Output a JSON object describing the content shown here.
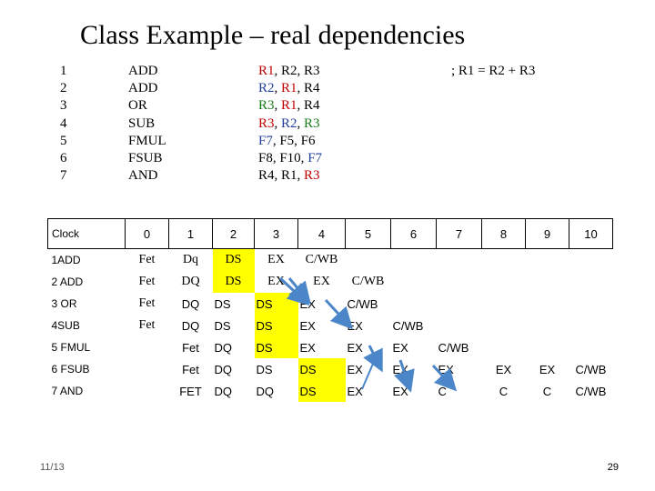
{
  "title": "Class Example – real dependencies",
  "code": {
    "line_numbers": [
      "1",
      "2",
      "3",
      "4",
      "5",
      "6",
      "7"
    ],
    "ops": [
      "ADD",
      "ADD",
      "OR",
      "SUB",
      "FMUL",
      "FSUB",
      "AND"
    ],
    "args": [
      [
        {
          "t": "R1",
          "c": "red"
        },
        {
          "t": ", R2, R3",
          "c": ""
        }
      ],
      [
        {
          "t": "R2",
          "c": "blue"
        },
        {
          "t": ", ",
          "c": ""
        },
        {
          "t": "R1",
          "c": "red"
        },
        {
          "t": ", R4",
          "c": ""
        }
      ],
      [
        {
          "t": "R3",
          "c": "green"
        },
        {
          "t": ", ",
          "c": ""
        },
        {
          "t": "R1",
          "c": "red"
        },
        {
          "t": ", R4",
          "c": ""
        }
      ],
      [
        {
          "t": "R3",
          "c": "red"
        },
        {
          "t": ", ",
          "c": ""
        },
        {
          "t": "R2",
          "c": "blue"
        },
        {
          "t": ", ",
          "c": ""
        },
        {
          "t": "R3",
          "c": "green"
        }
      ],
      [
        {
          "t": "F7",
          "c": "blue"
        },
        {
          "t": ", F5, F6",
          "c": ""
        }
      ],
      [
        {
          "t": "F8, F10, ",
          "c": ""
        },
        {
          "t": "F7",
          "c": "blue"
        }
      ],
      [
        {
          "t": "R4, R1, ",
          "c": ""
        },
        {
          "t": "R3",
          "c": "red"
        }
      ]
    ],
    "comment": "; R1 = R2 + R3"
  },
  "table": {
    "header_label": "Clock",
    "clocks": [
      "0",
      "1",
      "2",
      "3",
      "4",
      "5",
      "6",
      "7",
      "8",
      "9",
      "10"
    ],
    "rows": [
      {
        "label": "1ADD",
        "cells": [
          {
            "t": "Fet",
            "f": "serif"
          },
          {
            "t": "Dq",
            "f": "serif"
          },
          {
            "t": "DS",
            "f": "serif",
            "hl": true
          },
          {
            "t": "EX",
            "f": "serif"
          },
          {
            "t": "C/WB",
            "f": "serif"
          },
          {
            "t": ""
          },
          {
            "t": ""
          },
          {
            "t": ""
          },
          {
            "t": ""
          },
          {
            "t": ""
          },
          {
            "t": ""
          }
        ]
      },
      {
        "label": "2 ADD",
        "cells": [
          {
            "t": "Fet",
            "f": "serif"
          },
          {
            "t": "DQ",
            "f": "serif"
          },
          {
            "t": "DS",
            "f": "serif",
            "hl": true
          },
          {
            "t": "EX",
            "f": "serif"
          },
          {
            "t": "EX",
            "f": "serif"
          },
          {
            "t": "C/WB",
            "f": "serif"
          },
          {
            "t": ""
          },
          {
            "t": ""
          },
          {
            "t": ""
          },
          {
            "t": ""
          },
          {
            "t": ""
          }
        ]
      },
      {
        "label": "3 OR",
        "cells": [
          {
            "t": "Fet",
            "f": "serif"
          },
          {
            "t": "DQ"
          },
          {
            "t": "DS"
          },
          {
            "t": "DS",
            "hl": true
          },
          {
            "t": "EX"
          },
          {
            "t": "C/WB"
          },
          {
            "t": ""
          },
          {
            "t": ""
          },
          {
            "t": ""
          },
          {
            "t": ""
          },
          {
            "t": ""
          }
        ]
      },
      {
        "label": "4SUB",
        "cells": [
          {
            "t": "Fet",
            "f": "serif"
          },
          {
            "t": "DQ"
          },
          {
            "t": "DS"
          },
          {
            "t": "DS",
            "hl": true
          },
          {
            "t": "EX"
          },
          {
            "t": "EX"
          },
          {
            "t": "C/WB"
          },
          {
            "t": ""
          },
          {
            "t": ""
          },
          {
            "t": ""
          },
          {
            "t": ""
          }
        ]
      },
      {
        "label": "5 FMUL",
        "cells": [
          {
            "t": ""
          },
          {
            "t": "Fet"
          },
          {
            "t": "DQ"
          },
          {
            "t": "DS",
            "hl": true
          },
          {
            "t": "EX"
          },
          {
            "t": "EX"
          },
          {
            "t": "EX"
          },
          {
            "t": "C/WB"
          },
          {
            "t": ""
          },
          {
            "t": ""
          },
          {
            "t": ""
          }
        ]
      },
      {
        "label": "6 FSUB",
        "cells": [
          {
            "t": ""
          },
          {
            "t": "Fet"
          },
          {
            "t": "DQ"
          },
          {
            "t": "DS"
          },
          {
            "t": "DS",
            "hl": true
          },
          {
            "t": "EX"
          },
          {
            "t": "EX"
          },
          {
            "t": "EX"
          },
          {
            "t": "EX"
          },
          {
            "t": "EX"
          },
          {
            "t": "C/WB"
          }
        ]
      },
      {
        "label": "7 AND",
        "cells": [
          {
            "t": ""
          },
          {
            "t": "FET"
          },
          {
            "t": "DQ"
          },
          {
            "t": "DQ"
          },
          {
            "t": "DS",
            "hl": true
          },
          {
            "t": "EX"
          },
          {
            "t": "EX"
          },
          {
            "t": "C"
          },
          {
            "t": "C"
          },
          {
            "t": "C"
          },
          {
            "t": "C/WB"
          }
        ]
      }
    ]
  },
  "colors": {
    "red": "#c00000",
    "blue": "#1f3f9a",
    "green": "#1a7a1a",
    "highlight": "#ffff00",
    "arrow": "#4a86c8"
  },
  "footer": {
    "date": "11/13",
    "page": "29"
  }
}
